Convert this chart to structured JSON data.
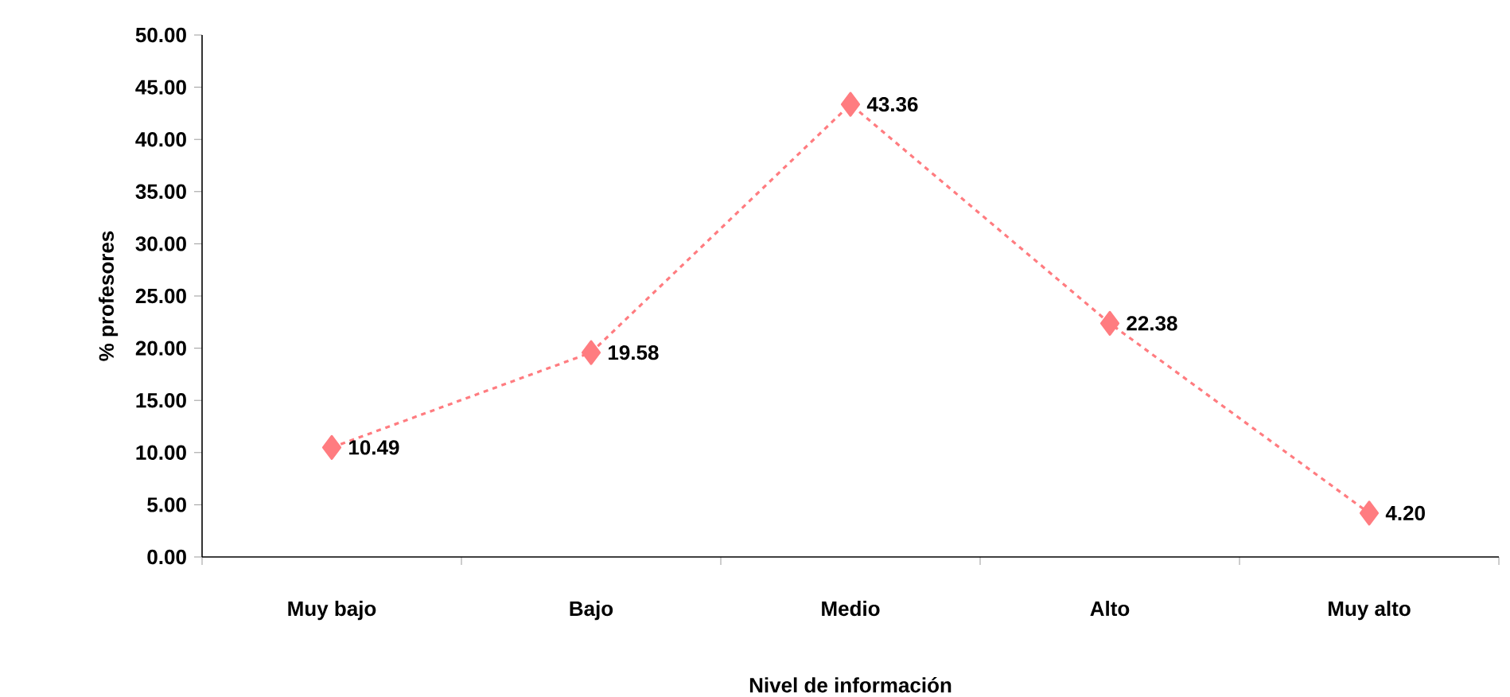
{
  "chart_data": {
    "type": "line",
    "xlabel": "Nivel de información",
    "ylabel": "% profesores",
    "categories": [
      "Muy bajo",
      "Bajo",
      "Medio",
      "Alto",
      "Muy alto"
    ],
    "values": [
      10.49,
      19.58,
      43.36,
      22.38,
      4.2
    ],
    "value_labels": [
      "10.49",
      "19.58",
      "43.36",
      "22.38",
      "4.20"
    ],
    "color": "#ff7c80",
    "marker": "diamond",
    "line_style": "dashed",
    "ylim": [
      0,
      50
    ],
    "yticks": [
      {
        "value": 0,
        "label": "0.00"
      },
      {
        "value": 5,
        "label": "5.00"
      },
      {
        "value": 10,
        "label": "10.00"
      },
      {
        "value": 15,
        "label": "15.00"
      },
      {
        "value": 20,
        "label": "20.00"
      },
      {
        "value": 25,
        "label": "25.00"
      },
      {
        "value": 30,
        "label": "30.00"
      },
      {
        "value": 35,
        "label": "35.00"
      },
      {
        "value": 40,
        "label": "40.00"
      },
      {
        "value": 45,
        "label": "45.00"
      },
      {
        "value": 50,
        "label": "50.00"
      }
    ]
  }
}
